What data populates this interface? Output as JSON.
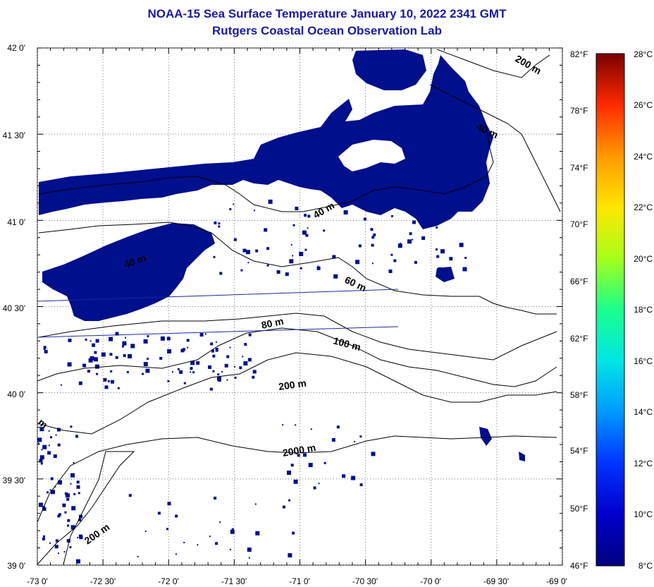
{
  "title": "NOAA-15 Sea Surface Temperature January 10, 2022 2341 GMT",
  "subtitle": "Rutgers Coastal Ocean Observation Lab",
  "map": {
    "lon_range": [
      -73.0,
      -69.0
    ],
    "lat_range": [
      39.0,
      42.0
    ],
    "lat_labels": [
      "42 0'",
      "41 30'",
      "41 0'",
      "40 30'",
      "40 0'",
      "39 30'",
      "39 0'"
    ],
    "lon_labels": [
      "-73 0'",
      "-72 30'",
      "-72 0'",
      "-71 30'",
      "-71 0'",
      "-70 30'",
      "-70 0'",
      "-69 30'",
      "-69 0'"
    ],
    "fahrenheit_labels": [
      "82°F",
      "78°F",
      "74°F",
      "70°F",
      "66°F",
      "62°F",
      "58°F",
      "54°F",
      "50°F",
      "46°F"
    ],
    "isobath_labels": [
      "200 m",
      "40 m",
      "40 m",
      "40 m",
      "60 m",
      "80 m",
      "100 m",
      "200 m",
      "2000 m",
      "200 m",
      "m"
    ],
    "land_color": "#ffffff",
    "cold_water_color": "#000f8c",
    "grid": true
  },
  "colorbar": {
    "celsius_labels": [
      "28°C",
      "26°C",
      "24°C",
      "22°C",
      "20°C",
      "18°C",
      "16°C",
      "14°C",
      "12°C",
      "10°C",
      "8°C"
    ],
    "range_c": [
      8,
      28
    ],
    "colors": [
      "#7a0000",
      "#cc0000",
      "#ff4000",
      "#ff9900",
      "#ffe600",
      "#a6ff1a",
      "#1aff8c",
      "#00e6e6",
      "#0099ff",
      "#0033ff",
      "#000080"
    ]
  }
}
